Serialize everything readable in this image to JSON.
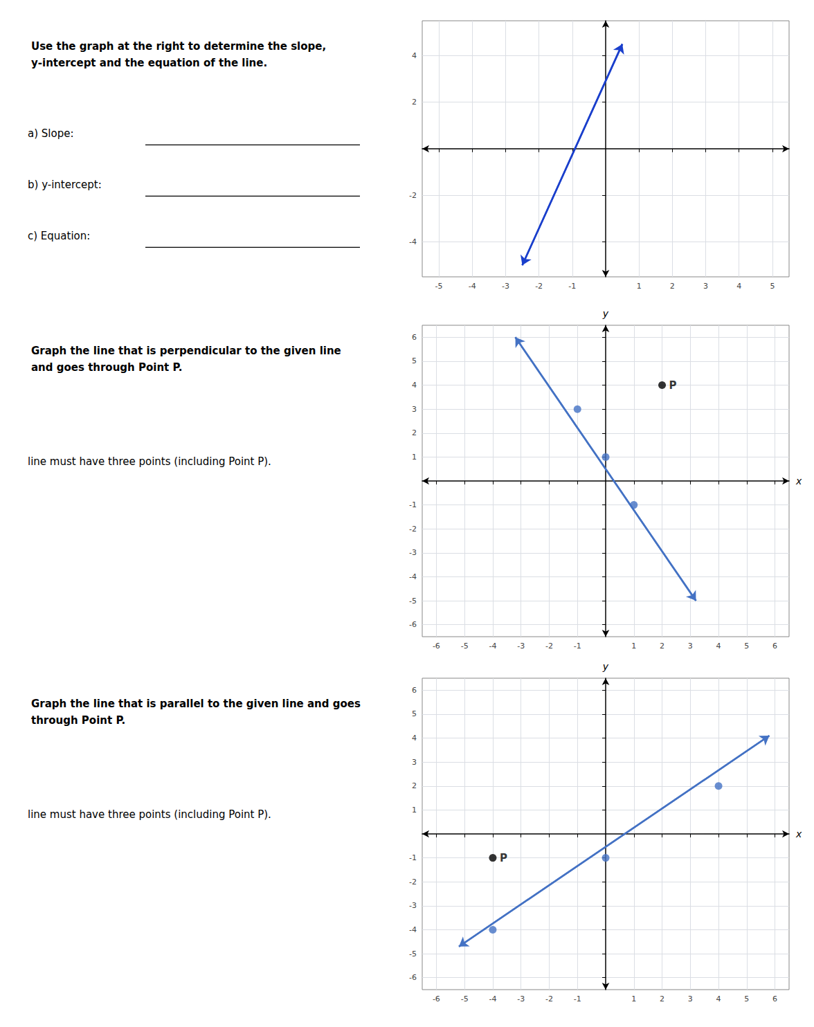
{
  "chart_data": [
    {
      "type": "line",
      "title": "Use the graph at the right to determine the slope,\ny-intercept and the equation of the line.",
      "annotations": [
        {
          "text": "a) Slope:"
        },
        {
          "text": "b) y-intercept:"
        },
        {
          "text": "c) Equation:"
        }
      ],
      "xlim": [
        -5.5,
        5.5
      ],
      "ylim": [
        -5.5,
        5.5
      ],
      "xticks": [
        -5,
        -4,
        -3,
        -2,
        -1,
        1,
        2,
        3,
        4,
        5
      ],
      "yticks": [
        -4,
        -2,
        2,
        4
      ],
      "grid": true,
      "series": [
        {
          "type": "line",
          "color": "#1a3fcc",
          "x": [
            -2.5,
            0.5
          ],
          "values": [
            -5,
            4.5
          ]
        }
      ]
    },
    {
      "type": "line",
      "title": "Graph the line that is perpendicular to the given line\nand goes through Point P.",
      "xlabel": "x",
      "ylabel": "y",
      "annotations": [
        {
          "text": "line must have three points (including Point P)."
        },
        {
          "text": "P",
          "x": 2,
          "y": 4
        }
      ],
      "xlim": [
        -6.5,
        6.5
      ],
      "ylim": [
        -6.5,
        6.5
      ],
      "xticks": [
        -6,
        -5,
        -4,
        -3,
        -2,
        -1,
        1,
        2,
        3,
        4,
        5,
        6
      ],
      "yticks": [
        -6,
        -5,
        -4,
        -3,
        -2,
        -1,
        1,
        2,
        3,
        4,
        5,
        6
      ],
      "grid": true,
      "series": [
        {
          "type": "line",
          "color": "#4472c4",
          "x": [
            -3.2,
            3.2
          ],
          "values": [
            6.0,
            -5.0
          ]
        },
        {
          "type": "scatter",
          "color": "#4472c4",
          "x": [
            -1,
            0,
            1
          ],
          "values": [
            3,
            1,
            -1
          ]
        },
        {
          "type": "scatter",
          "color": "#000000",
          "x": [
            2
          ],
          "values": [
            4
          ]
        }
      ]
    },
    {
      "type": "line",
      "title": "Graph the line that is parallel to the given line and goes\nthrough Point P.",
      "xlabel": "x",
      "ylabel": "y",
      "annotations": [
        {
          "text": "line must have three points (including Point P)."
        },
        {
          "text": "P",
          "x": -4,
          "y": -1
        }
      ],
      "xlim": [
        -6.5,
        6.5
      ],
      "ylim": [
        -6.5,
        6.5
      ],
      "xticks": [
        -6,
        -5,
        -4,
        -3,
        -2,
        -1,
        1,
        2,
        3,
        4,
        5,
        6
      ],
      "yticks": [
        -6,
        -5,
        -4,
        -3,
        -2,
        -1,
        1,
        2,
        3,
        4,
        5,
        6
      ],
      "grid": true,
      "series": [
        {
          "type": "line",
          "color": "#4472c4",
          "x": [
            -5.2,
            5.8
          ],
          "values": [
            -4.7,
            4.1
          ]
        },
        {
          "type": "scatter",
          "color": "#4472c4",
          "x": [
            -4,
            0,
            4
          ],
          "values": [
            -4,
            -1,
            2
          ]
        },
        {
          "type": "scatter",
          "color": "#000000",
          "x": [
            -4
          ],
          "values": [
            -1
          ]
        }
      ]
    }
  ]
}
